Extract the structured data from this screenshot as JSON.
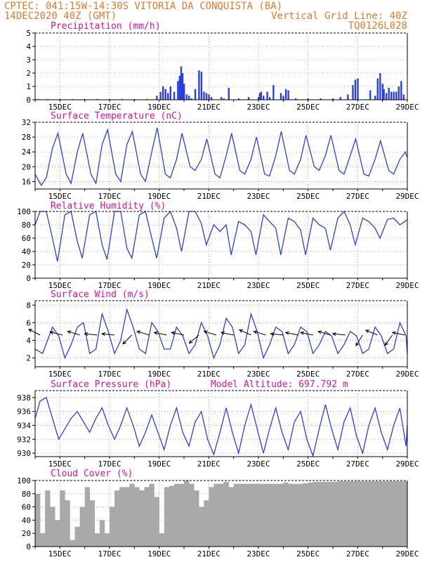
{
  "header": {
    "line1": "CPTEC:   041:15W-14:30S   VITORIA DA CONQUISTA (BA)",
    "line2_left": "14DEC2020 40Z (GMT)",
    "line2_right": "Vertical Grid Line: 40Z",
    "line3_right": "TQ0126L028"
  },
  "colors": {
    "series": "#2a3fe0",
    "title": "#e0109a",
    "header": "#e5782a",
    "cloud": "#a9a9a9"
  },
  "x_axis": {
    "start": 14.0,
    "end": 29.0,
    "ticks": [
      15,
      17,
      19,
      21,
      23,
      25,
      27,
      29
    ],
    "tick_labels": [
      "15DEC",
      "17DEC",
      "19DEC",
      "21DEC",
      "23DEC",
      "25DEC",
      "27DEC",
      "29DEC"
    ]
  },
  "chart_data": [
    {
      "type": "bar",
      "title": "Precipitation  (mm/h)",
      "ylim": [
        0,
        5
      ],
      "yticks": [
        0,
        1,
        2,
        3,
        4,
        5
      ],
      "x": [
        14.1,
        14.5,
        15.0,
        15.5,
        16.0,
        16.5,
        17.0,
        17.5,
        18.0,
        18.5,
        18.9,
        19.05,
        19.15,
        19.25,
        19.35,
        19.45,
        19.6,
        19.75,
        19.82,
        19.88,
        19.94,
        20.0,
        20.1,
        20.2,
        20.3,
        20.45,
        20.6,
        20.7,
        20.8,
        20.9,
        21.0,
        21.1,
        21.5,
        21.6,
        21.8,
        22.2,
        22.6,
        23.0,
        23.05,
        23.1,
        23.2,
        23.35,
        23.45,
        23.6,
        23.9,
        24.0,
        24.1,
        24.2,
        24.5,
        25.0,
        25.5,
        26.0,
        26.3,
        26.6,
        26.8,
        26.9,
        27.0,
        27.5,
        27.7,
        27.8,
        27.9,
        28.0,
        28.05,
        28.15,
        28.25,
        28.35,
        28.45,
        28.55,
        28.65,
        28.75,
        28.85
      ],
      "values": [
        0.05,
        0.05,
        0.05,
        0.05,
        0.05,
        0.05,
        0.05,
        0.05,
        0.05,
        0.05,
        0.3,
        0.6,
        1.0,
        0.8,
        0.5,
        1.0,
        0.6,
        1.4,
        1.8,
        2.5,
        2.0,
        1.2,
        0.4,
        0.3,
        0.1,
        0.8,
        2.2,
        2.1,
        0.6,
        0.5,
        0.4,
        0.2,
        0.2,
        0.1,
        0.9,
        0.1,
        0.2,
        0.2,
        0.5,
        0.6,
        0.3,
        0.6,
        0.2,
        1.1,
        0.5,
        0.3,
        0.8,
        0.7,
        0.1,
        0.1,
        0.1,
        0.1,
        0.2,
        0.4,
        1.1,
        1.5,
        1.6,
        0.7,
        0.3,
        1.6,
        2.0,
        1.2,
        0.8,
        0.5,
        0.9,
        0.6,
        0.6,
        0.6,
        1.0,
        1.4,
        0.4
      ]
    },
    {
      "type": "line",
      "title": "Surface Temperature  (nC)",
      "ylim": [
        14,
        32
      ],
      "yticks": [
        16,
        20,
        24,
        28,
        32
      ],
      "x": [
        14.0,
        14.25,
        14.45,
        14.7,
        14.92,
        15.25,
        15.45,
        15.7,
        15.92,
        16.25,
        16.45,
        16.7,
        16.92,
        17.25,
        17.45,
        17.7,
        17.92,
        18.25,
        18.45,
        18.7,
        18.92,
        19.25,
        19.45,
        19.7,
        19.92,
        20.25,
        20.45,
        20.7,
        20.92,
        21.25,
        21.45,
        21.7,
        21.92,
        22.25,
        22.45,
        22.7,
        22.92,
        23.25,
        23.45,
        23.7,
        23.92,
        24.25,
        24.45,
        24.7,
        24.92,
        25.25,
        25.45,
        25.7,
        25.92,
        26.25,
        26.45,
        26.7,
        26.92,
        27.25,
        27.45,
        27.7,
        27.92,
        28.25,
        28.45,
        28.7,
        28.92,
        29.0
      ],
      "values": [
        18,
        15,
        17,
        25,
        29,
        18,
        15.5,
        24,
        29,
        18,
        15.5,
        26,
        30,
        18,
        16,
        26,
        29.5,
        18,
        16,
        24,
        30.5,
        18,
        17,
        22,
        29,
        20,
        19,
        22,
        27.5,
        18,
        17,
        23,
        29,
        19,
        18,
        22,
        28,
        18,
        17.5,
        23,
        29.5,
        19,
        18,
        22,
        28.5,
        20,
        19,
        23,
        28.5,
        19,
        18,
        23,
        27.5,
        18,
        17.5,
        22,
        27,
        19,
        18,
        22,
        24,
        22.5
      ]
    },
    {
      "type": "line",
      "title": "Relative Humidity  (%)",
      "ylim": [
        0,
        100
      ],
      "yticks": [
        0,
        20,
        40,
        60,
        80,
        100
      ],
      "x": [
        14.0,
        14.2,
        14.45,
        14.7,
        14.9,
        15.2,
        15.45,
        15.7,
        15.9,
        16.2,
        16.45,
        16.7,
        16.9,
        17.2,
        17.45,
        17.7,
        17.9,
        18.2,
        18.45,
        18.7,
        18.9,
        19.2,
        19.45,
        19.7,
        19.9,
        20.2,
        20.45,
        20.7,
        20.9,
        21.2,
        21.45,
        21.7,
        21.9,
        22.2,
        22.45,
        22.7,
        22.9,
        23.2,
        23.45,
        23.7,
        23.9,
        24.2,
        24.45,
        24.7,
        24.9,
        25.2,
        25.45,
        25.7,
        25.9,
        26.2,
        26.45,
        26.7,
        26.9,
        27.2,
        27.45,
        27.7,
        27.9,
        28.2,
        28.45,
        28.7,
        28.9,
        29.0
      ],
      "values": [
        80,
        100,
        100,
        60,
        25,
        95,
        100,
        55,
        30,
        95,
        100,
        50,
        28,
        100,
        100,
        45,
        30,
        95,
        100,
        60,
        30,
        90,
        100,
        75,
        40,
        100,
        100,
        82,
        50,
        80,
        70,
        80,
        35,
        85,
        80,
        70,
        35,
        95,
        85,
        75,
        35,
        90,
        85,
        72,
        35,
        90,
        80,
        75,
        42,
        90,
        100,
        80,
        50,
        90,
        85,
        75,
        60,
        88,
        90,
        80,
        85,
        88
      ]
    },
    {
      "type": "line",
      "title": "Surface Wind  (m/s)",
      "ylim": [
        1,
        8.5
      ],
      "yticks": [
        2,
        4,
        6,
        8
      ],
      "x": [
        14.0,
        14.3,
        14.5,
        14.7,
        14.95,
        15.2,
        15.45,
        15.7,
        15.95,
        16.2,
        16.45,
        16.7,
        16.95,
        17.2,
        17.45,
        17.7,
        17.95,
        18.2,
        18.45,
        18.7,
        18.95,
        19.2,
        19.45,
        19.7,
        19.95,
        20.2,
        20.45,
        20.7,
        20.95,
        21.2,
        21.45,
        21.7,
        21.95,
        22.2,
        22.45,
        22.7,
        22.95,
        23.2,
        23.45,
        23.7,
        23.95,
        24.2,
        24.45,
        24.7,
        24.95,
        25.2,
        25.45,
        25.7,
        25.95,
        26.2,
        26.45,
        26.7,
        26.95,
        27.2,
        27.45,
        27.7,
        27.95,
        28.2,
        28.45,
        28.7,
        28.95,
        29.0
      ],
      "values": [
        3,
        2.5,
        4,
        5.5,
        4.5,
        2,
        3.5,
        5.5,
        6,
        2.5,
        3,
        7,
        5,
        2.5,
        4,
        7.5,
        5.5,
        3,
        2.5,
        6,
        5,
        3,
        3,
        5.5,
        4.5,
        2.5,
        3.5,
        6,
        4.5,
        2,
        3.5,
        6.5,
        5.5,
        2.5,
        3.5,
        7,
        5,
        2,
        3.5,
        5.5,
        5,
        2.5,
        3.5,
        5.5,
        5,
        2.5,
        3.5,
        5,
        4.5,
        2.5,
        3.5,
        5,
        4.5,
        2.5,
        3,
        5.5,
        4.5,
        2.5,
        3,
        6,
        4.5,
        2.5
      ],
      "vectors": {
        "x": [
          14.2,
          15.1,
          15.8,
          16.5,
          17.2,
          17.9,
          18.6,
          19.3,
          20.0,
          20.6,
          21.3,
          22.0,
          22.7,
          23.3,
          24.0,
          24.6,
          25.2,
          25.9,
          26.5,
          27.2,
          27.8,
          28.4,
          28.9
        ],
        "u": [
          -1,
          -0.8,
          -1,
          -1,
          -1,
          -0.6,
          -1,
          -1,
          -1,
          -0.7,
          -1,
          -1,
          -0.9,
          -1,
          -1,
          -1,
          -1,
          -1,
          -1,
          -0.5,
          -1,
          -0.5,
          -1
        ],
        "v": [
          0.5,
          0.2,
          0.3,
          0.1,
          0.1,
          -0.6,
          0.3,
          0.2,
          0.2,
          -0.6,
          0.3,
          0.2,
          0.4,
          0.3,
          0.1,
          0.2,
          0.2,
          0.3,
          0.1,
          -0.8,
          0.4,
          -0.7,
          0.2
        ]
      }
    },
    {
      "type": "line",
      "title": "Surface Pressure  (hPa)",
      "annotation": "Model Altitude: 697.792  m",
      "ylim": [
        929.5,
        939
      ],
      "yticks": [
        930,
        932,
        934,
        936,
        938
      ],
      "x": [
        14.0,
        14.2,
        14.45,
        14.7,
        14.95,
        15.2,
        15.45,
        15.7,
        15.95,
        16.2,
        16.45,
        16.7,
        16.95,
        17.2,
        17.45,
        17.7,
        17.95,
        18.2,
        18.45,
        18.7,
        18.95,
        19.2,
        19.45,
        19.7,
        19.95,
        20.2,
        20.45,
        20.7,
        20.95,
        21.2,
        21.45,
        21.7,
        21.95,
        22.2,
        22.45,
        22.7,
        22.95,
        23.2,
        23.45,
        23.7,
        23.95,
        24.2,
        24.45,
        24.7,
        24.95,
        25.2,
        25.45,
        25.7,
        25.95,
        26.2,
        26.45,
        26.7,
        26.95,
        27.2,
        27.45,
        27.7,
        27.95,
        28.2,
        28.45,
        28.7,
        28.95,
        29.0
      ],
      "values": [
        935,
        937.5,
        938,
        935,
        932,
        933.5,
        935,
        936,
        934.5,
        933,
        935,
        936.5,
        934,
        932,
        934,
        936.5,
        934,
        931,
        933,
        935.5,
        933,
        930.5,
        934,
        936.5,
        933,
        931,
        934.5,
        936,
        932,
        929.8,
        933,
        936.5,
        933,
        930,
        934,
        937,
        933.5,
        930,
        933.5,
        936.5,
        933,
        930.5,
        934.5,
        936,
        932,
        929.6,
        933.5,
        937,
        933.5,
        930.5,
        934.5,
        936.5,
        932.5,
        930,
        934,
        936.5,
        933,
        930.5,
        934,
        936.5,
        931,
        934
      ]
    },
    {
      "type": "area",
      "title": "Cloud Cover  (%)",
      "ylim": [
        0,
        100
      ],
      "yticks": [
        0,
        20,
        40,
        60,
        80,
        100
      ],
      "x": [
        14.0,
        14.2,
        14.4,
        14.6,
        14.8,
        15.0,
        15.2,
        15.4,
        15.6,
        15.8,
        16.0,
        16.2,
        16.4,
        16.6,
        16.8,
        17.0,
        17.2,
        17.4,
        17.6,
        17.8,
        18.0,
        18.2,
        18.4,
        18.6,
        18.8,
        19.0,
        19.2,
        19.4,
        19.6,
        19.8,
        20.0,
        20.2,
        20.4,
        20.6,
        20.8,
        21.0,
        21.2,
        21.4,
        21.6,
        21.8,
        22.0,
        22.2,
        22.4,
        22.6,
        22.8,
        23.0,
        23.2,
        23.4,
        23.6,
        23.8,
        24.0,
        24.2,
        24.4,
        24.6,
        24.8,
        25.0,
        25.2,
        25.4,
        25.6,
        25.8,
        26.0,
        26.2,
        26.4,
        26.6,
        26.8,
        27.0,
        27.2,
        27.4,
        27.6,
        27.8,
        28.0,
        28.2,
        28.4,
        28.6,
        28.8,
        29.0
      ],
      "values": [
        80,
        20,
        85,
        60,
        40,
        85,
        70,
        10,
        30,
        60,
        90,
        70,
        20,
        40,
        20,
        60,
        85,
        90,
        90,
        95,
        90,
        85,
        90,
        95,
        75,
        20,
        90,
        92,
        95,
        95,
        100,
        95,
        85,
        60,
        70,
        90,
        95,
        95,
        98,
        90,
        95,
        95,
        95,
        95,
        95,
        95,
        95,
        95,
        95,
        95,
        97,
        95,
        95,
        95,
        96,
        97,
        98,
        98,
        98,
        98,
        98,
        99,
        99,
        99,
        99,
        99,
        99,
        99,
        99,
        99,
        99,
        99,
        99,
        99,
        99,
        99
      ]
    }
  ]
}
